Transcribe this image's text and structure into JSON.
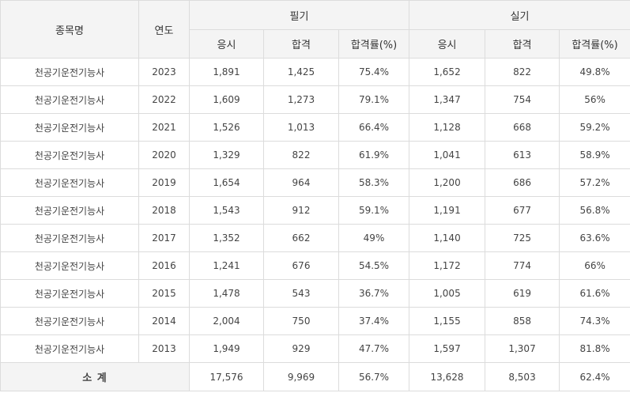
{
  "header": {
    "item": "종목명",
    "year": "연도",
    "written": "필기",
    "practical": "실기",
    "applicants": "응시",
    "passed": "합격",
    "rate": "합격률(%)"
  },
  "rows": [
    {
      "name": "천공기운전기능사",
      "year": "2023",
      "w_app": "1,891",
      "w_pass": "1,425",
      "w_rate": "75.4%",
      "p_app": "1,652",
      "p_pass": "822",
      "p_rate": "49.8%"
    },
    {
      "name": "천공기운전기능사",
      "year": "2022",
      "w_app": "1,609",
      "w_pass": "1,273",
      "w_rate": "79.1%",
      "p_app": "1,347",
      "p_pass": "754",
      "p_rate": "56%"
    },
    {
      "name": "천공기운전기능사",
      "year": "2021",
      "w_app": "1,526",
      "w_pass": "1,013",
      "w_rate": "66.4%",
      "p_app": "1,128",
      "p_pass": "668",
      "p_rate": "59.2%"
    },
    {
      "name": "천공기운전기능사",
      "year": "2020",
      "w_app": "1,329",
      "w_pass": "822",
      "w_rate": "61.9%",
      "p_app": "1,041",
      "p_pass": "613",
      "p_rate": "58.9%"
    },
    {
      "name": "천공기운전기능사",
      "year": "2019",
      "w_app": "1,654",
      "w_pass": "964",
      "w_rate": "58.3%",
      "p_app": "1,200",
      "p_pass": "686",
      "p_rate": "57.2%"
    },
    {
      "name": "천공기운전기능사",
      "year": "2018",
      "w_app": "1,543",
      "w_pass": "912",
      "w_rate": "59.1%",
      "p_app": "1,191",
      "p_pass": "677",
      "p_rate": "56.8%"
    },
    {
      "name": "천공기운전기능사",
      "year": "2017",
      "w_app": "1,352",
      "w_pass": "662",
      "w_rate": "49%",
      "p_app": "1,140",
      "p_pass": "725",
      "p_rate": "63.6%"
    },
    {
      "name": "천공기운전기능사",
      "year": "2016",
      "w_app": "1,241",
      "w_pass": "676",
      "w_rate": "54.5%",
      "p_app": "1,172",
      "p_pass": "774",
      "p_rate": "66%"
    },
    {
      "name": "천공기운전기능사",
      "year": "2015",
      "w_app": "1,478",
      "w_pass": "543",
      "w_rate": "36.7%",
      "p_app": "1,005",
      "p_pass": "619",
      "p_rate": "61.6%"
    },
    {
      "name": "천공기운전기능사",
      "year": "2014",
      "w_app": "2,004",
      "w_pass": "750",
      "w_rate": "37.4%",
      "p_app": "1,155",
      "p_pass": "858",
      "p_rate": "74.3%"
    },
    {
      "name": "천공기운전기능사",
      "year": "2013",
      "w_app": "1,949",
      "w_pass": "929",
      "w_rate": "47.7%",
      "p_app": "1,597",
      "p_pass": "1,307",
      "p_rate": "81.8%"
    }
  ],
  "total": {
    "label": "소 계",
    "w_app": "17,576",
    "w_pass": "9,969",
    "w_rate": "56.7%",
    "p_app": "13,628",
    "p_pass": "8,503",
    "p_rate": "62.4%"
  }
}
